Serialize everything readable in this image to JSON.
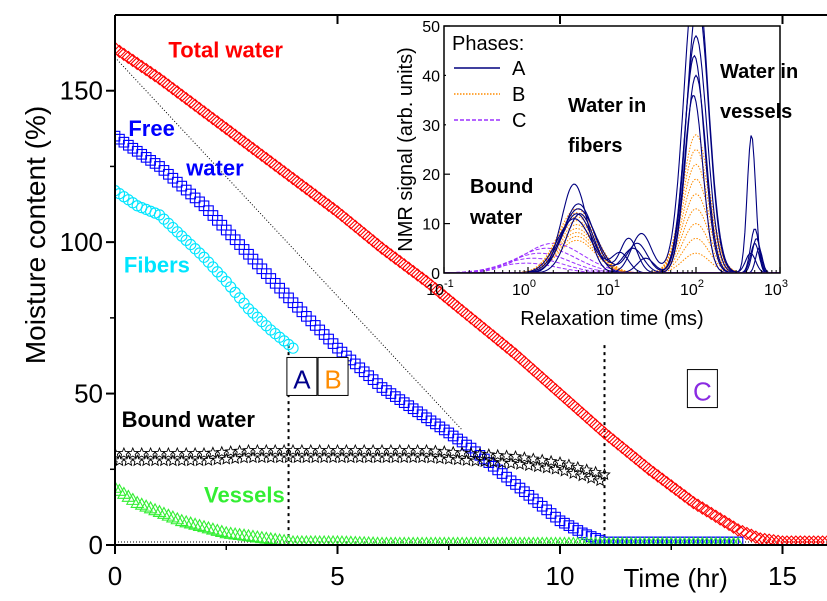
{
  "chart_data": [
    {
      "type": "scatter",
      "xlabel": "Time (hr)",
      "ylabel": "Moisture content (%)",
      "xlim": [
        0,
        16
      ],
      "ylim": [
        0,
        175
      ],
      "x_ticks": [
        "0",
        "5",
        "10",
        "15"
      ],
      "y_ticks": [
        "0",
        "50",
        "100",
        "150"
      ],
      "grid": false,
      "series": [
        {
          "name": "Total water",
          "color": "#ff0000",
          "marker": "diamond",
          "x": [
            0,
            1,
            2,
            3,
            4,
            5,
            6,
            7,
            8,
            9,
            10,
            11,
            12,
            13,
            14,
            14.5,
            15,
            15.5,
            16
          ],
          "y": [
            164,
            154,
            143,
            132,
            121,
            110,
            98,
            87,
            75,
            63,
            50,
            37,
            25,
            14,
            5,
            2,
            1,
            1,
            1
          ]
        },
        {
          "name": "Free water",
          "color": "#0000ff",
          "marker": "square",
          "x": [
            0,
            1,
            2,
            3,
            4,
            5,
            6,
            7,
            8,
            9,
            10,
            10.5,
            11,
            12,
            13,
            14
          ],
          "y": [
            135,
            125,
            112,
            96,
            80,
            65,
            52,
            42,
            32,
            20,
            8,
            4,
            1,
            1,
            1,
            1
          ]
        },
        {
          "name": "Fibers",
          "color": "#00e5ff",
          "marker": "circle",
          "x": [
            0,
            0.5,
            1,
            1.5,
            2,
            2.5,
            3,
            3.5,
            4
          ],
          "y": [
            117,
            112,
            109,
            102,
            95,
            87,
            78,
            71,
            65
          ]
        },
        {
          "name": "Bound water",
          "color": "#000000",
          "marker": "star",
          "x": [
            0,
            1,
            2,
            3,
            4,
            5,
            6,
            7,
            8,
            9,
            10,
            10.5,
            11
          ],
          "y": [
            29,
            29,
            29,
            30,
            30,
            30,
            30,
            30,
            29,
            28,
            26,
            24,
            22
          ]
        },
        {
          "name": "Vessels",
          "color": "#33ee33",
          "marker": "triangle",
          "x": [
            0,
            0.5,
            1,
            1.5,
            2,
            2.5,
            3,
            3.5,
            4,
            5,
            6,
            7,
            8,
            9,
            10,
            11,
            12,
            13,
            14
          ],
          "y": [
            19,
            14,
            11,
            8,
            6,
            4,
            3,
            2,
            1,
            1,
            0.5,
            0.5,
            0.5,
            0.5,
            0.5,
            0.5,
            0.5,
            0.5,
            0.5
          ]
        }
      ],
      "reference_line": {
        "x": [
          0,
          7.8
        ],
        "y": [
          161,
          38
        ]
      },
      "phase_boundaries": [
        3.9,
        11.0
      ],
      "phase_boxes": [
        {
          "label": "A",
          "color": "#00008b",
          "x": 4.2,
          "y": 54
        },
        {
          "label": "B",
          "color": "#ff8c00",
          "x": 4.9,
          "y": 54
        },
        {
          "label": "C",
          "color": "#8a2be2",
          "x": 13.2,
          "y": 50
        }
      ],
      "annotations": [
        {
          "text": "Total water",
          "color": "#ff0000",
          "x": 1.2,
          "y": 161
        },
        {
          "text": "Free",
          "color": "#0000ff",
          "x": 0.3,
          "y": 135
        },
        {
          "text": "water",
          "color": "#0000ff",
          "x": 1.6,
          "y": 122
        },
        {
          "text": "Fibers",
          "color": "#00e5ff",
          "x": 0.2,
          "y": 90
        },
        {
          "text": "Bound water",
          "color": "#000000",
          "x": 0.15,
          "y": 39
        },
        {
          "text": "Vessels",
          "color": "#33ee33",
          "x": 2.0,
          "y": 14
        }
      ]
    },
    {
      "type": "line",
      "xlabel": "Relaxation time (ms)",
      "ylabel": "NMR signal (arb. units)",
      "x_scale": "log",
      "xlim": [
        0.1,
        1000
      ],
      "ylim": [
        0,
        50
      ],
      "x_ticks": [
        "10-1",
        "100",
        "101",
        "102",
        "103"
      ],
      "y_ticks": [
        "0",
        "10",
        "20",
        "30",
        "40",
        "50"
      ],
      "legend_title": "Phases:",
      "legend_position": "top-left",
      "series": [
        {
          "name": "A",
          "color": "#00007f",
          "style": "solid"
        },
        {
          "name": "B",
          "color": "#ff8c00",
          "style": "dotted"
        },
        {
          "name": "C",
          "color": "#9b30ff",
          "style": "dashed"
        }
      ],
      "annotations": [
        {
          "text": "Water in",
          "x": 1.8,
          "y": 42
        },
        {
          "text": "fibers",
          "x": 1.8,
          "y": 34
        },
        {
          "text": "Water in",
          "x": 200,
          "y": 47
        },
        {
          "text": "vessels",
          "x": 200,
          "y": 39
        },
        {
          "text": "Bound",
          "x": 0.9,
          "y": 20
        },
        {
          "text": "water",
          "x": 0.9,
          "y": 12
        }
      ]
    }
  ]
}
